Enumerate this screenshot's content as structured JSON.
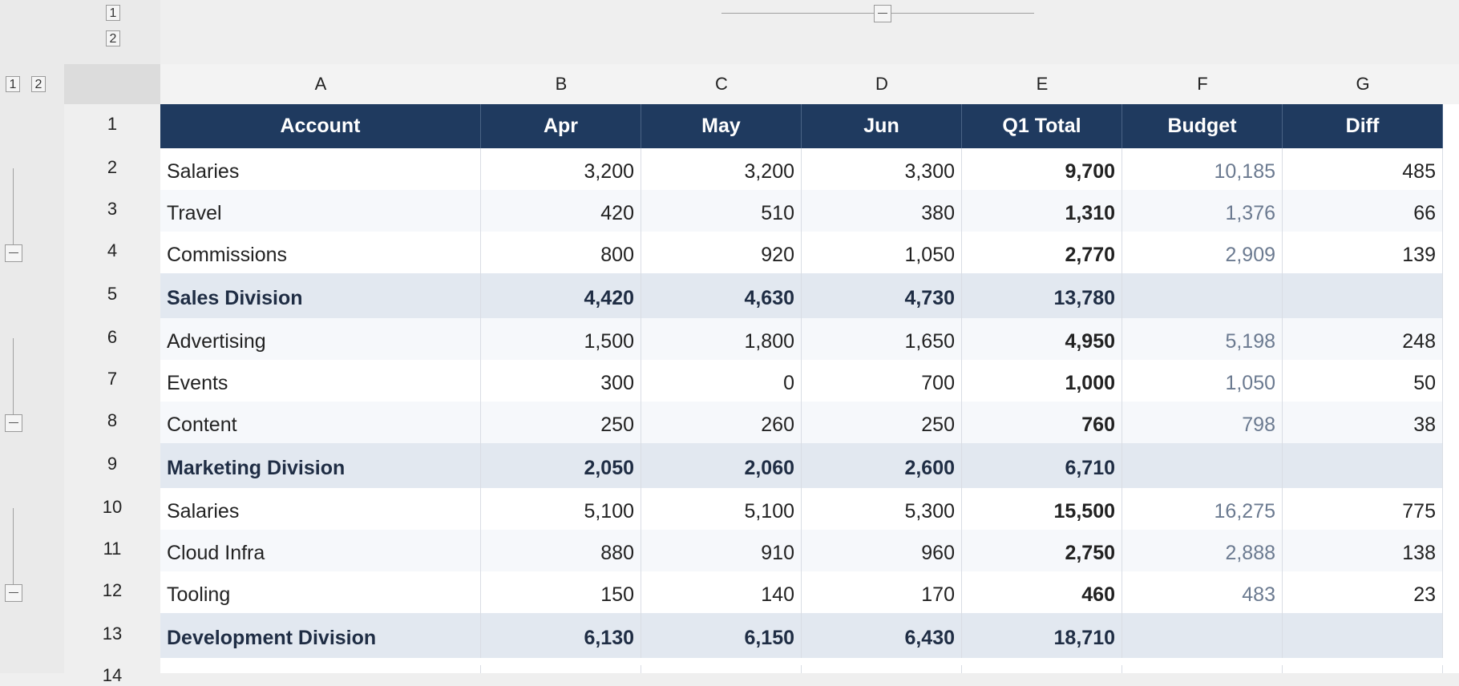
{
  "outline": {
    "col_levels": [
      "1",
      "2"
    ],
    "row_levels": [
      "1",
      "2"
    ]
  },
  "columns": [
    "A",
    "B",
    "C",
    "D",
    "E",
    "F",
    "G"
  ],
  "row_numbers": [
    "1",
    "2",
    "3",
    "4",
    "5",
    "6",
    "7",
    "8",
    "9",
    "10",
    "11",
    "12",
    "13",
    "14"
  ],
  "header": [
    "Account",
    "Apr",
    "May",
    "Jun",
    "Q1 Total",
    "Budget",
    "Diff"
  ],
  "rows": [
    {
      "type": "data",
      "account": "Salaries",
      "apr": "3,200",
      "may": "3,200",
      "jun": "3,300",
      "total": "9,700",
      "budget": "10,185",
      "diff": "485"
    },
    {
      "type": "data",
      "account": "Travel",
      "apr": "420",
      "may": "510",
      "jun": "380",
      "total": "1,310",
      "budget": "1,376",
      "diff": "66"
    },
    {
      "type": "data",
      "account": "Commissions",
      "apr": "800",
      "may": "920",
      "jun": "1,050",
      "total": "2,770",
      "budget": "2,909",
      "diff": "139"
    },
    {
      "type": "subtotal",
      "account": "Sales Division",
      "apr": "4,420",
      "may": "4,630",
      "jun": "4,730",
      "total": "13,780",
      "budget": "",
      "diff": ""
    },
    {
      "type": "data",
      "account": "Advertising",
      "apr": "1,500",
      "may": "1,800",
      "jun": "1,650",
      "total": "4,950",
      "budget": "5,198",
      "diff": "248"
    },
    {
      "type": "data",
      "account": "Events",
      "apr": "300",
      "may": "0",
      "jun": "700",
      "total": "1,000",
      "budget": "1,050",
      "diff": "50"
    },
    {
      "type": "data",
      "account": "Content",
      "apr": "250",
      "may": "260",
      "jun": "250",
      "total": "760",
      "budget": "798",
      "diff": "38"
    },
    {
      "type": "subtotal",
      "account": "Marketing Division",
      "apr": "2,050",
      "may": "2,060",
      "jun": "2,600",
      "total": "6,710",
      "budget": "",
      "diff": ""
    },
    {
      "type": "data",
      "account": "Salaries",
      "apr": "5,100",
      "may": "5,100",
      "jun": "5,300",
      "total": "15,500",
      "budget": "16,275",
      "diff": "775"
    },
    {
      "type": "data",
      "account": "Cloud Infra",
      "apr": "880",
      "may": "910",
      "jun": "960",
      "total": "2,750",
      "budget": "2,888",
      "diff": "138"
    },
    {
      "type": "data",
      "account": "Tooling",
      "apr": "150",
      "may": "140",
      "jun": "170",
      "total": "460",
      "budget": "483",
      "diff": "23"
    },
    {
      "type": "subtotal",
      "account": "Development Division",
      "apr": "6,130",
      "may": "6,150",
      "jun": "6,430",
      "total": "18,710",
      "budget": "",
      "diff": ""
    }
  ],
  "colors": {
    "header_bg": "#1f3a5f",
    "subtotal_bg": "#e2e8f0",
    "budget_text": "#6b7a90"
  }
}
